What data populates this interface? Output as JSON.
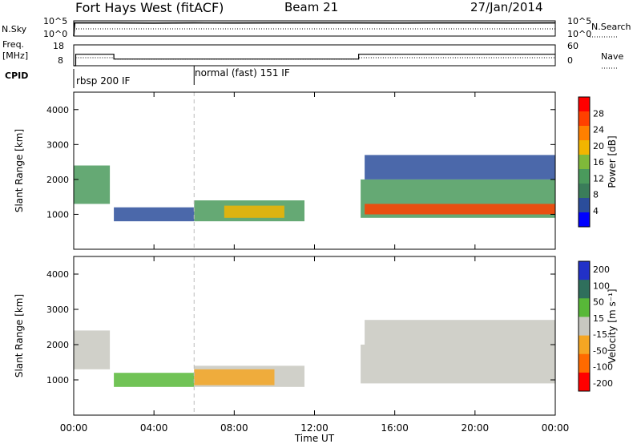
{
  "header": {
    "station": "Fort Hays West (fitACF)",
    "beam": "Beam 21",
    "date": "27/Jan/2014"
  },
  "side_labels": {
    "nsky": "N.Sky",
    "nsearch": "N.Search",
    "freq_line1": "Freq.",
    "freq_line2": "[MHz]",
    "nave": "Nave",
    "cpid": "CPID"
  },
  "cpid_segments": [
    {
      "label": "rbsp 200 IF",
      "start_hour": 0
    },
    {
      "label": "normal (fast) 151 IF",
      "start_hour": 6
    }
  ],
  "noise_axis": {
    "ticks": [
      "10^5",
      "10^0"
    ]
  },
  "freq_axis": {
    "ticks": [
      "18",
      "8"
    ]
  },
  "nave_axis": {
    "ticks": [
      "60",
      "0"
    ]
  },
  "time_axis": {
    "label": "Time UT",
    "ticks": [
      "00:00",
      "04:00",
      "08:00",
      "12:00",
      "16:00",
      "20:00",
      "00:00"
    ]
  },
  "colors": {
    "power_scale": [
      "#0000ff",
      "#2b4d9b",
      "#3a7d5a",
      "#4a9a5c",
      "#7fb93a",
      "#f2b500",
      "#ff8000",
      "#ff4000",
      "#ff0000"
    ],
    "velocity_scale": [
      "#2231c8",
      "#2f6f5c",
      "#58b838",
      "#c8c8c0",
      "#f5a623",
      "#ff6a00",
      "#ff0000"
    ]
  },
  "chart_data": [
    {
      "type": "line",
      "title": "Fort Hays West (fitACF)",
      "panel": "noise",
      "xlabel": "Time UT",
      "xlim": [
        0,
        24
      ],
      "series": [
        {
          "name": "N.Sky",
          "x": [
            0,
            0.05,
            2,
            4,
            6,
            8,
            10,
            12,
            14,
            16,
            18,
            20,
            22,
            24
          ],
          "y": [
            1,
            30000,
            30000,
            28000,
            30000,
            29000,
            31000,
            30000,
            30000,
            29000,
            30000,
            30000,
            29000,
            30000
          ]
        }
      ]
    },
    {
      "type": "line",
      "panel": "frequency",
      "xlim": [
        0,
        24
      ],
      "ylim_freq": [
        8,
        18
      ],
      "ylim_nave": [
        0,
        60
      ],
      "series": [
        {
          "name": "Freq.",
          "x": [
            0,
            0.1,
            0.1,
            2,
            2,
            14.2,
            14.2,
            24
          ],
          "y": [
            8,
            8,
            13.5,
            13.5,
            11.2,
            11.2,
            13.5,
            13.5
          ]
        },
        {
          "name": "Nave",
          "x": [
            0.1,
            2,
            2,
            14.2,
            14.2,
            24
          ],
          "y": [
            23,
            23,
            19,
            19,
            23,
            23
          ]
        }
      ]
    },
    {
      "type": "heatmap",
      "panel": "power",
      "ylabel": "Slant Range [km]",
      "colorbar_label": "Power [dB]",
      "colorbar_ticks": [
        4,
        8,
        12,
        16,
        20,
        24,
        28
      ],
      "xlim": [
        0,
        24
      ],
      "ylim": [
        0,
        4500
      ],
      "yticks": [
        1000,
        2000,
        3000,
        4000
      ],
      "x": [
        "00:00",
        "04:00",
        "08:00",
        "12:00",
        "16:00",
        "20:00",
        "00:00"
      ],
      "regions": [
        {
          "t0": 0.0,
          "t1": 1.8,
          "r0": 1300,
          "r1": 2400,
          "db": 10
        },
        {
          "t0": 2.0,
          "t1": 6.0,
          "r0": 800,
          "r1": 1200,
          "db": 5
        },
        {
          "t0": 6.0,
          "t1": 11.5,
          "r0": 800,
          "r1": 1400,
          "db": 12
        },
        {
          "t0": 7.5,
          "t1": 10.5,
          "r0": 900,
          "r1": 1250,
          "db": 16
        },
        {
          "t0": 14.3,
          "t1": 24.0,
          "r0": 900,
          "r1": 2000,
          "db": 12
        },
        {
          "t0": 14.5,
          "t1": 24.0,
          "r0": 1000,
          "r1": 1300,
          "db": 26
        },
        {
          "t0": 14.5,
          "t1": 24.0,
          "r0": 2000,
          "r1": 2700,
          "db": 5
        }
      ]
    },
    {
      "type": "heatmap",
      "panel": "velocity",
      "ylabel": "Slant Range [km]",
      "colorbar_label": "Velocity [m s⁻¹]",
      "colorbar_ticks": [
        200,
        100,
        50,
        15,
        -15,
        -50,
        -100,
        -200
      ],
      "xlim": [
        0,
        24
      ],
      "ylim": [
        0,
        4500
      ],
      "yticks": [
        1000,
        2000,
        3000,
        4000
      ],
      "x": [
        "00:00",
        "04:00",
        "08:00",
        "12:00",
        "16:00",
        "20:00",
        "00:00"
      ],
      "regions": [
        {
          "t0": 0.0,
          "t1": 1.8,
          "r0": 1300,
          "r1": 2400,
          "v": 0
        },
        {
          "t0": 2.0,
          "t1": 6.0,
          "r0": 800,
          "r1": 1200,
          "v": 40
        },
        {
          "t0": 6.0,
          "t1": 11.5,
          "r0": 800,
          "r1": 1400,
          "v": 0
        },
        {
          "t0": 6.0,
          "t1": 10.0,
          "r0": 850,
          "r1": 1300,
          "v": -50
        },
        {
          "t0": 14.3,
          "t1": 24.0,
          "r0": 900,
          "r1": 2000,
          "v": 0
        },
        {
          "t0": 14.5,
          "t1": 24.0,
          "r0": 2000,
          "r1": 2700,
          "v": 0
        }
      ]
    }
  ]
}
